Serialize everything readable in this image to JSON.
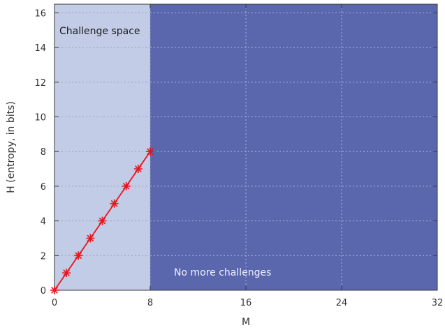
{
  "chart_data": {
    "type": "line",
    "xlabel": "M",
    "ylabel": "H (entropy, in bits)",
    "xlim": [
      0,
      32
    ],
    "ylim": [
      0,
      16.5
    ],
    "x_ticks": [
      0,
      8,
      16,
      24,
      32
    ],
    "y_ticks": [
      0,
      2,
      4,
      6,
      8,
      10,
      12,
      14,
      16
    ],
    "grid": true,
    "regions": [
      {
        "label": "Challenge space",
        "x_range": [
          0,
          8
        ],
        "color": "#c3cce6"
      },
      {
        "label": "No more challenges",
        "x_range": [
          8,
          32
        ],
        "color": "#5a67ad"
      }
    ],
    "series": [
      {
        "color": "#e8141c",
        "marker": "star",
        "x": [
          0,
          1,
          2,
          3,
          4,
          5,
          6,
          7,
          8
        ],
        "y": [
          0,
          1,
          2,
          3,
          4,
          5,
          6,
          7,
          8
        ]
      }
    ]
  },
  "colors": {
    "axis": "#3a3a3a",
    "grid_light_region": "#9aa3c0",
    "grid_dark_region": "#aab2d8",
    "tick_text": "#333333",
    "region_label_light_text": "#1b1b1b",
    "region_label_dark_text": "#eef0fa"
  }
}
